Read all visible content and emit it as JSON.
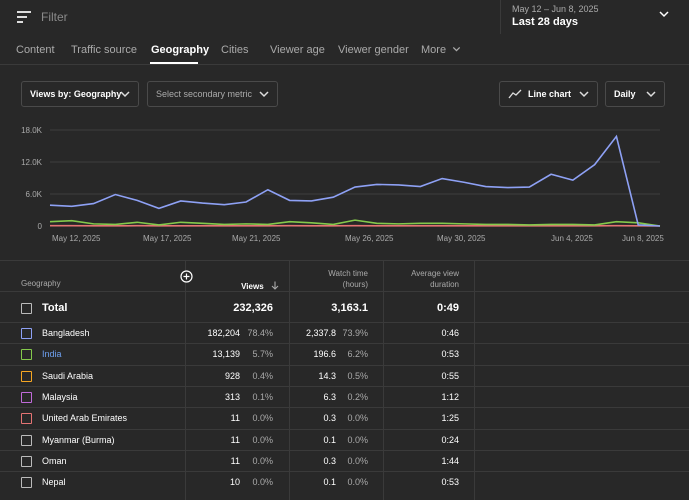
{
  "topbar": {
    "filter_placeholder": "Filter",
    "date_range": "May 12 – Jun 8, 2025",
    "date_label": "Last 28 days"
  },
  "tabs": [
    "Content",
    "Traffic source",
    "Geography",
    "Cities",
    "Viewer age",
    "Viewer gender",
    "More"
  ],
  "active_tab": "Geography",
  "controls": {
    "views_by": "Views by: Geography",
    "secondary_metric": "Select secondary metric",
    "chart_type": "Line chart",
    "granularity": "Daily"
  },
  "chart_data": {
    "type": "line",
    "ylim": [
      0,
      18000
    ],
    "yticks": [
      "0",
      "6.0K",
      "12.0K",
      "18.0K"
    ],
    "xticks": [
      "May 12, 2025",
      "May 17, 2025",
      "May 21, 2025",
      "May 26, 2025",
      "May 30, 2025",
      "Jun 4, 2025",
      "Jun 8, 2025"
    ],
    "x": [
      "May 11",
      "May 12",
      "May 13",
      "May 14",
      "May 15",
      "May 16",
      "May 17",
      "May 18",
      "May 19",
      "May 20",
      "May 21",
      "May 22",
      "May 23",
      "May 24",
      "May 25",
      "May 26",
      "May 27",
      "May 28",
      "May 29",
      "May 30",
      "May 31",
      "Jun 1",
      "Jun 2",
      "Jun 3",
      "Jun 4",
      "Jun 5",
      "Jun 6",
      "Jun 7",
      "Jun 8"
    ],
    "series": [
      {
        "color": "#8ea1f5",
        "values": [
          3900,
          3700,
          4200,
          5900,
          4800,
          3300,
          4700,
          4300,
          4000,
          4500,
          6800,
          4800,
          4700,
          5400,
          7300,
          7800,
          7700,
          7400,
          8900,
          8200,
          7400,
          7200,
          7300,
          9700,
          8600,
          11500,
          16800,
          200,
          0
        ]
      },
      {
        "color": "#84c94b",
        "values": [
          800,
          1000,
          400,
          300,
          700,
          200,
          700,
          500,
          300,
          400,
          300,
          800,
          600,
          300,
          1100,
          500,
          400,
          500,
          500,
          400,
          300,
          300,
          200,
          300,
          300,
          200,
          800,
          600,
          0
        ]
      },
      {
        "color": "#e57373",
        "values": [
          50,
          60,
          40,
          30,
          50,
          30,
          40,
          40,
          30,
          40,
          30,
          50,
          40,
          30,
          60,
          40,
          40,
          40,
          40,
          30,
          30,
          30,
          30,
          30,
          30,
          30,
          50,
          40,
          0
        ]
      }
    ]
  },
  "table": {
    "headers": {
      "geo": "Geography",
      "views": "Views",
      "watch1": "Watch time",
      "watch2": "(hours)",
      "avg1": "Average view",
      "avg2": "duration"
    },
    "total": {
      "name": "Total",
      "views": "232,326",
      "watch": "3,163.1",
      "avg": "0:49"
    },
    "rows": [
      {
        "name": "Bangladesh",
        "color": "#8ea1f5",
        "name_color": "#ffffff",
        "views": "182,204",
        "views_pct": "78.4%",
        "watch": "2,337.8",
        "watch_pct": "73.9%",
        "avg": "0:46"
      },
      {
        "name": "India",
        "color": "#84c94b",
        "name_color": "#6ea0f0",
        "views": "13,139",
        "views_pct": "5.7%",
        "watch": "196.6",
        "watch_pct": "6.2%",
        "avg": "0:53"
      },
      {
        "name": "Saudi Arabia",
        "color": "#f5a623",
        "name_color": "#ffffff",
        "views": "928",
        "views_pct": "0.4%",
        "watch": "14.3",
        "watch_pct": "0.5%",
        "avg": "0:55"
      },
      {
        "name": "Malaysia",
        "color": "#c06ad9",
        "name_color": "#ffffff",
        "views": "313",
        "views_pct": "0.1%",
        "watch": "6.3",
        "watch_pct": "0.2%",
        "avg": "1:12"
      },
      {
        "name": "United Arab Emirates",
        "color": "#e57373",
        "name_color": "#ffffff",
        "views": "11",
        "views_pct": "0.0%",
        "watch": "0.3",
        "watch_pct": "0.0%",
        "avg": "1:25"
      },
      {
        "name": "Myanmar (Burma)",
        "color": "#bbbbbb",
        "name_color": "#ffffff",
        "views": "11",
        "views_pct": "0.0%",
        "watch": "0.1",
        "watch_pct": "0.0%",
        "avg": "0:24"
      },
      {
        "name": "Oman",
        "color": "#bbbbbb",
        "name_color": "#ffffff",
        "views": "11",
        "views_pct": "0.0%",
        "watch": "0.3",
        "watch_pct": "0.0%",
        "avg": "1:44"
      },
      {
        "name": "Nepal",
        "color": "#bbbbbb",
        "name_color": "#ffffff",
        "views": "10",
        "views_pct": "0.0%",
        "watch": "0.1",
        "watch_pct": "0.0%",
        "avg": "0:53"
      }
    ]
  }
}
